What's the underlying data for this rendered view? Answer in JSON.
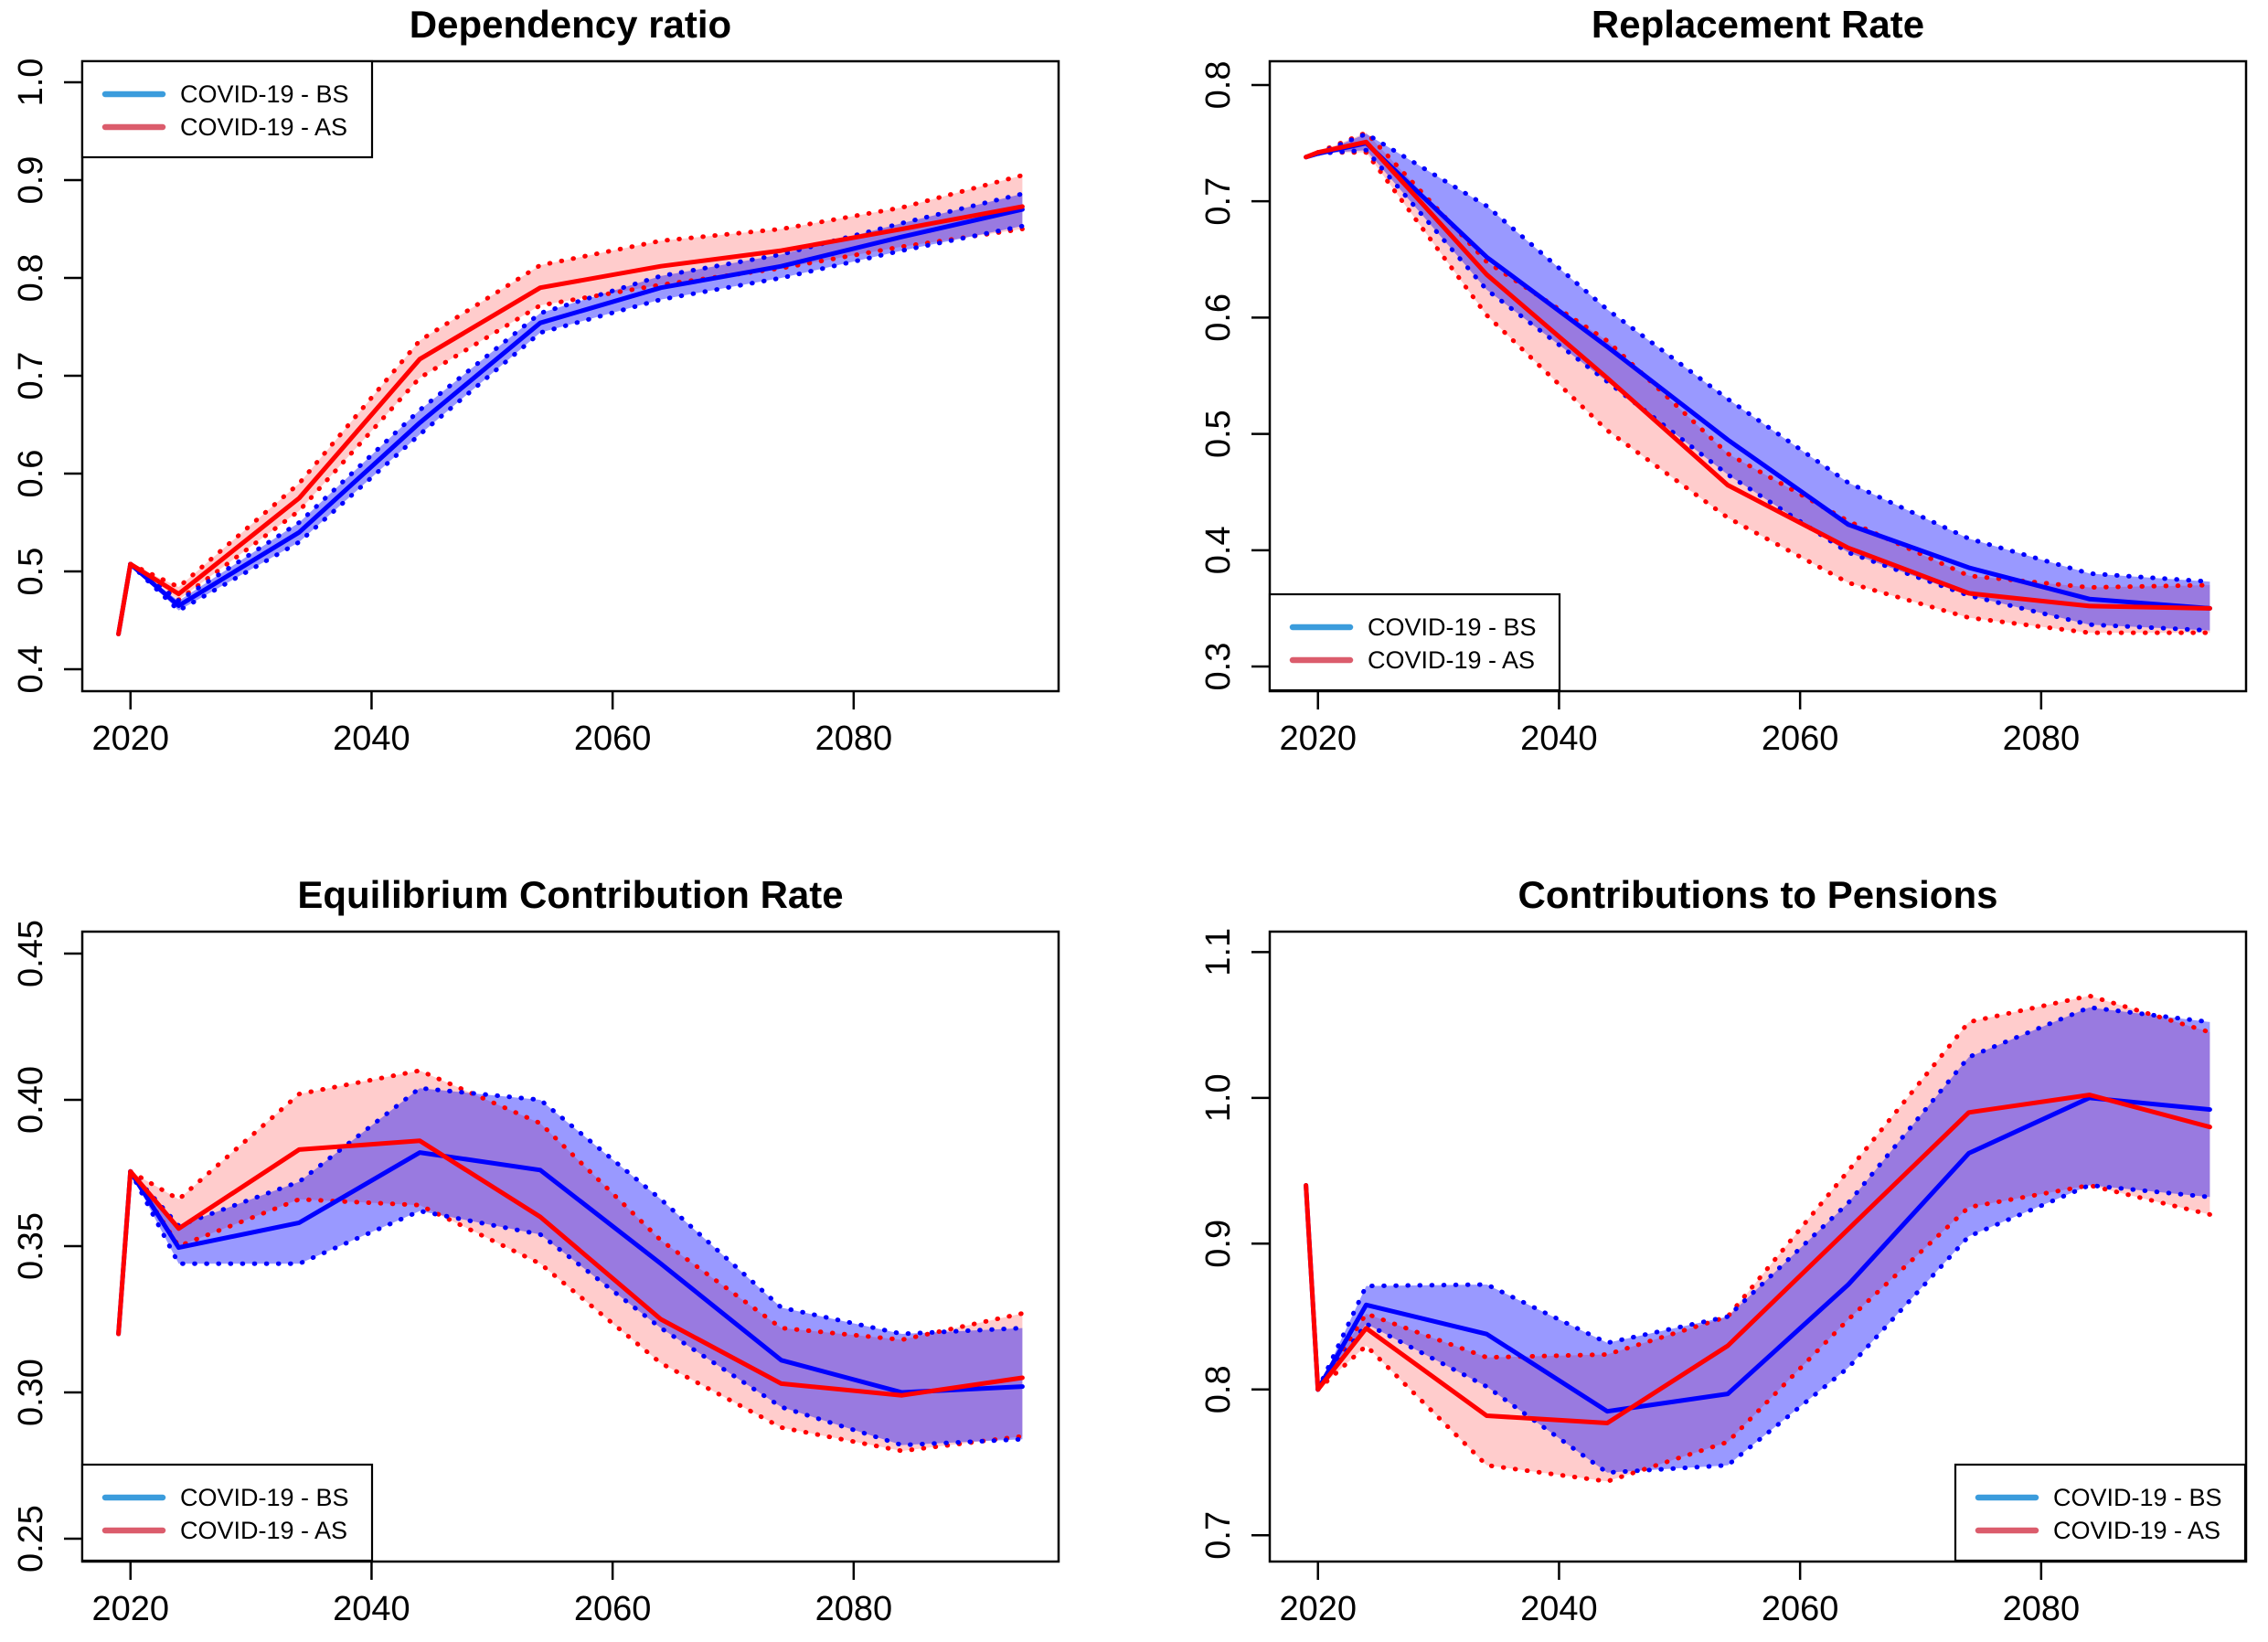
{
  "figure": {
    "background": "#ffffff",
    "kind": "r-multipanel-line-charts",
    "grid": "2x2"
  },
  "colors": {
    "bs_line": "#0000ff",
    "as_line": "#ff0000",
    "bs_band_fill": "rgba(0,0,255,0.40)",
    "as_band_fill": "rgba(255,0,0,0.20)",
    "legend_bs_swatch": "#3b9cdc",
    "legend_as_swatch": "#db5c6c",
    "axis": "#000000"
  },
  "legend_labels": {
    "bs": "COVID-19 - BS",
    "as": "COVID-19 - AS"
  },
  "chart_data": [
    {
      "type": "line",
      "title": "Dependency ratio",
      "xlabel": "",
      "ylabel": "",
      "xlim": [
        2016,
        2097
      ],
      "ylim": [
        0.3776,
        1.0215
      ],
      "grid": false,
      "legend_position": "topleft",
      "legend_entries": [
        "COVID-19 - BS",
        "COVID-19 - AS"
      ],
      "xticks": [
        2020,
        2040,
        2060,
        2080
      ],
      "yticks": [
        "0.4",
        "0.5",
        "0.6",
        "0.7",
        "0.8",
        "0.9",
        "1.0"
      ],
      "ytick_values": [
        0.4,
        0.5,
        0.6,
        0.7,
        0.8,
        0.9,
        1.0
      ],
      "series": [
        {
          "name": "COVID-19 - BS",
          "role": "median",
          "x": [
            2019,
            2020,
            2024,
            2034,
            2044,
            2054,
            2064,
            2074,
            2084,
            2094
          ],
          "values": [
            0.436,
            0.5075,
            0.465,
            0.54,
            0.652,
            0.754,
            0.79,
            0.812,
            0.842,
            0.87
          ]
        },
        {
          "name": "COVID-19 - BS lower band",
          "role": "band-lower",
          "x": [
            2020,
            2024,
            2034,
            2044,
            2054,
            2064,
            2074,
            2084,
            2094
          ],
          "values": [
            0.5075,
            0.46,
            0.53,
            0.64,
            0.744,
            0.778,
            0.8,
            0.828,
            0.853
          ]
        },
        {
          "name": "COVID-19 - BS upper band",
          "role": "band-upper",
          "x": [
            2020,
            2024,
            2034,
            2044,
            2054,
            2064,
            2074,
            2084,
            2094
          ],
          "values": [
            0.5075,
            0.47,
            0.55,
            0.665,
            0.764,
            0.802,
            0.824,
            0.856,
            0.886
          ]
        },
        {
          "name": "COVID-19 - AS",
          "role": "median",
          "x": [
            2019,
            2020,
            2024,
            2034,
            2044,
            2054,
            2064,
            2074,
            2084,
            2094
          ],
          "values": [
            0.436,
            0.5075,
            0.477,
            0.575,
            0.717,
            0.79,
            0.812,
            0.828,
            0.85,
            0.873
          ]
        },
        {
          "name": "COVID-19 - AS lower band",
          "role": "band-lower",
          "x": [
            2020,
            2024,
            2034,
            2044,
            2054,
            2064,
            2074,
            2084,
            2094
          ],
          "values": [
            0.5075,
            0.471,
            0.562,
            0.698,
            0.772,
            0.793,
            0.81,
            0.832,
            0.85
          ]
        },
        {
          "name": "COVID-19 - AS upper band",
          "role": "band-upper",
          "x": [
            2020,
            2024,
            2034,
            2044,
            2054,
            2064,
            2074,
            2084,
            2094
          ],
          "values": [
            0.5075,
            0.484,
            0.59,
            0.736,
            0.813,
            0.838,
            0.85,
            0.872,
            0.905
          ]
        }
      ]
    },
    {
      "type": "line",
      "title": "Replacement Rate",
      "xlabel": "",
      "ylabel": "",
      "xlim": [
        2016,
        2097
      ],
      "ylim": [
        0.2788,
        0.8204
      ],
      "grid": false,
      "legend_position": "bottomleft",
      "legend_entries": [
        "COVID-19 - BS",
        "COVID-19 - AS"
      ],
      "xticks": [
        2020,
        2040,
        2060,
        2080
      ],
      "yticks": [
        "0.3",
        "0.4",
        "0.5",
        "0.6",
        "0.7",
        "0.8"
      ],
      "ytick_values": [
        0.3,
        0.4,
        0.5,
        0.6,
        0.7,
        0.8
      ],
      "series": [
        {
          "name": "COVID-19 - BS",
          "role": "median",
          "x": [
            2019,
            2020,
            2024,
            2034,
            2044,
            2054,
            2064,
            2074,
            2084,
            2094
          ],
          "values": [
            0.738,
            0.741,
            0.75,
            0.652,
            0.575,
            0.495,
            0.422,
            0.385,
            0.358,
            0.35
          ]
        },
        {
          "name": "COVID-19 - BS lower band",
          "role": "band-lower",
          "x": [
            2020,
            2024,
            2034,
            2044,
            2054,
            2064,
            2074,
            2084,
            2094
          ],
          "values": [
            0.741,
            0.744,
            0.624,
            0.545,
            0.465,
            0.398,
            0.361,
            0.336,
            0.331
          ]
        },
        {
          "name": "COVID-19 - BS upper band",
          "role": "band-upper",
          "x": [
            2020,
            2024,
            2034,
            2044,
            2054,
            2064,
            2074,
            2084,
            2094
          ],
          "values": [
            0.741,
            0.758,
            0.696,
            0.607,
            0.53,
            0.458,
            0.41,
            0.38,
            0.373
          ]
        },
        {
          "name": "COVID-19 - AS",
          "role": "median",
          "x": [
            2019,
            2020,
            2024,
            2034,
            2044,
            2054,
            2064,
            2074,
            2084,
            2094
          ],
          "values": [
            0.738,
            0.742,
            0.751,
            0.637,
            0.548,
            0.456,
            0.402,
            0.363,
            0.352,
            0.35
          ]
        },
        {
          "name": "COVID-19 - AS lower band",
          "role": "band-lower",
          "x": [
            2020,
            2024,
            2034,
            2044,
            2054,
            2064,
            2074,
            2084,
            2094
          ],
          "values": [
            0.742,
            0.742,
            0.602,
            0.503,
            0.428,
            0.372,
            0.342,
            0.329,
            0.329
          ]
        },
        {
          "name": "COVID-19 - AS upper band",
          "role": "band-upper",
          "x": [
            2020,
            2024,
            2034,
            2044,
            2054,
            2064,
            2074,
            2084,
            2094
          ],
          "values": [
            0.742,
            0.759,
            0.648,
            0.58,
            0.483,
            0.425,
            0.378,
            0.368,
            0.37
          ]
        }
      ]
    },
    {
      "type": "line",
      "title": "Equilibrium Contribution Rate",
      "xlabel": "",
      "ylabel": "",
      "xlim": [
        2016,
        2097
      ],
      "ylim": [
        0.2422,
        0.4575
      ],
      "grid": false,
      "legend_position": "bottomleft",
      "legend_entries": [
        "COVID-19 - BS",
        "COVID-19 - AS"
      ],
      "xticks": [
        2020,
        2040,
        2060,
        2080
      ],
      "yticks": [
        "0.25",
        "0.30",
        "0.35",
        "0.40",
        "0.45"
      ],
      "ytick_values": [
        0.25,
        0.3,
        0.35,
        0.4,
        0.45
      ],
      "series": [
        {
          "name": "COVID-19 - BS",
          "role": "median",
          "x": [
            2019,
            2020,
            2024,
            2034,
            2044,
            2054,
            2064,
            2074,
            2084,
            2094
          ],
          "values": [
            0.32,
            0.3755,
            0.3495,
            0.358,
            0.382,
            0.376,
            0.344,
            0.311,
            0.3,
            0.302
          ]
        },
        {
          "name": "COVID-19 - BS lower band",
          "role": "band-lower",
          "x": [
            2020,
            2024,
            2034,
            2044,
            2054,
            2064,
            2074,
            2084,
            2094
          ],
          "values": [
            0.3755,
            0.344,
            0.344,
            0.362,
            0.354,
            0.322,
            0.295,
            0.282,
            0.284
          ]
        },
        {
          "name": "COVID-19 - BS upper band",
          "role": "band-upper",
          "x": [
            2020,
            2024,
            2034,
            2044,
            2054,
            2064,
            2074,
            2084,
            2094
          ],
          "values": [
            0.3755,
            0.357,
            0.372,
            0.404,
            0.4,
            0.366,
            0.329,
            0.32,
            0.322
          ]
        },
        {
          "name": "COVID-19 - AS",
          "role": "median",
          "x": [
            2019,
            2020,
            2024,
            2034,
            2044,
            2054,
            2064,
            2074,
            2084,
            2094
          ],
          "values": [
            0.32,
            0.3755,
            0.356,
            0.383,
            0.386,
            0.36,
            0.325,
            0.303,
            0.299,
            0.305
          ]
        },
        {
          "name": "COVID-19 - AS lower band",
          "role": "band-lower",
          "x": [
            2020,
            2024,
            2034,
            2044,
            2054,
            2064,
            2074,
            2084,
            2094
          ],
          "values": [
            0.3755,
            0.35,
            0.366,
            0.364,
            0.344,
            0.31,
            0.288,
            0.28,
            0.285
          ]
        },
        {
          "name": "COVID-19 - AS upper band",
          "role": "band-upper",
          "x": [
            2020,
            2024,
            2034,
            2044,
            2054,
            2064,
            2074,
            2084,
            2094
          ],
          "values": [
            0.3755,
            0.366,
            0.402,
            0.41,
            0.392,
            0.352,
            0.322,
            0.318,
            0.327
          ]
        }
      ]
    },
    {
      "type": "line",
      "title": "Contributions to Pensions",
      "xlabel": "",
      "ylabel": "",
      "xlim": [
        2016,
        2097
      ],
      "ylim": [
        0.682,
        1.114
      ],
      "grid": false,
      "legend_position": "bottomright",
      "legend_entries": [
        "COVID-19 - BS",
        "COVID-19 - AS"
      ],
      "xticks": [
        2020,
        2040,
        2060,
        2080
      ],
      "yticks": [
        "0.7",
        "0.8",
        "0.9",
        "1.0",
        "1.1"
      ],
      "ytick_values": [
        0.7,
        0.8,
        0.9,
        1.0,
        1.1
      ],
      "series": [
        {
          "name": "COVID-19 - BS",
          "role": "median",
          "x": [
            2019,
            2020,
            2024,
            2034,
            2044,
            2054,
            2064,
            2074,
            2084,
            2094
          ],
          "values": [
            0.94,
            0.8,
            0.858,
            0.838,
            0.785,
            0.797,
            0.872,
            0.962,
            1.0,
            0.992
          ]
        },
        {
          "name": "COVID-19 - BS lower band",
          "role": "band-lower",
          "x": [
            2020,
            2024,
            2034,
            2044,
            2054,
            2064,
            2074,
            2084,
            2094
          ],
          "values": [
            0.8,
            0.845,
            0.802,
            0.743,
            0.748,
            0.815,
            0.905,
            0.94,
            0.932
          ]
        },
        {
          "name": "COVID-19 - BS upper band",
          "role": "band-upper",
          "x": [
            2020,
            2024,
            2034,
            2044,
            2054,
            2064,
            2074,
            2084,
            2094
          ],
          "values": [
            0.8,
            0.871,
            0.872,
            0.832,
            0.85,
            0.928,
            1.028,
            1.062,
            1.052
          ]
        },
        {
          "name": "COVID-19 - AS",
          "role": "median",
          "x": [
            2019,
            2020,
            2024,
            2034,
            2044,
            2054,
            2064,
            2074,
            2084,
            2094
          ],
          "values": [
            0.94,
            0.8,
            0.842,
            0.782,
            0.777,
            0.83,
            0.91,
            0.99,
            1.002,
            0.98
          ]
        },
        {
          "name": "COVID-19 - AS lower band",
          "role": "band-lower",
          "x": [
            2020,
            2024,
            2034,
            2044,
            2054,
            2064,
            2074,
            2084,
            2094
          ],
          "values": [
            0.8,
            0.83,
            0.748,
            0.737,
            0.764,
            0.848,
            0.925,
            0.94,
            0.92
          ]
        },
        {
          "name": "COVID-19 - AS upper band",
          "role": "band-upper",
          "x": [
            2020,
            2024,
            2034,
            2044,
            2054,
            2064,
            2074,
            2084,
            2094
          ],
          "values": [
            0.8,
            0.852,
            0.822,
            0.824,
            0.85,
            0.95,
            1.052,
            1.07,
            1.045
          ]
        }
      ]
    }
  ]
}
